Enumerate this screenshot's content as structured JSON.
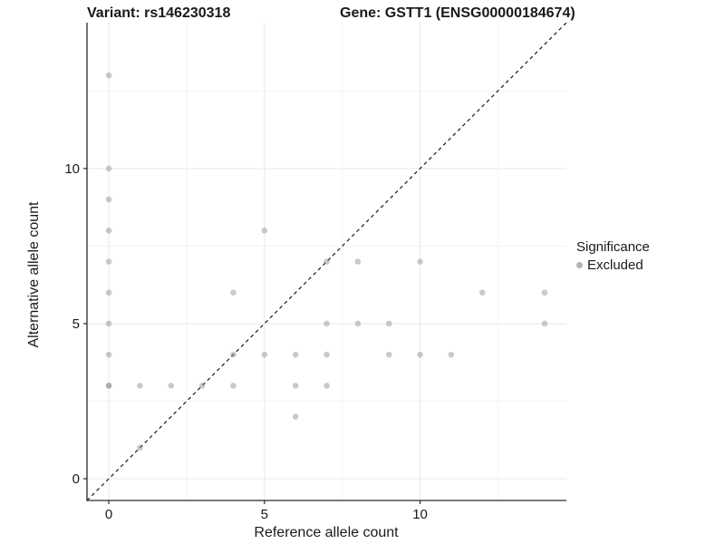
{
  "chart_data": {
    "type": "scatter",
    "title_left": "Variant: rs146230318",
    "title_right": "Gene: GSTT1 (ENSG00000184674)",
    "xlabel": "Reference allele count",
    "ylabel": "Alternative allele count",
    "xlim": [
      -0.7,
      14.7
    ],
    "ylim": [
      -0.7,
      14.7
    ],
    "x_ticks": [
      0,
      5,
      10
    ],
    "y_ticks": [
      0,
      5,
      10
    ],
    "x_minor_ticks": [
      2.5,
      7.5,
      12.5
    ],
    "y_minor_ticks": [
      2.5,
      7.5,
      12.5
    ],
    "grid": true,
    "identity_line": {
      "style": "dashed",
      "from": [
        -0.7,
        -0.7
      ],
      "to": [
        14.7,
        14.7
      ]
    },
    "points": [
      [
        0,
        3
      ],
      [
        0,
        3
      ],
      [
        0,
        4
      ],
      [
        0,
        5
      ],
      [
        0,
        6
      ],
      [
        0,
        7
      ],
      [
        0,
        8
      ],
      [
        0,
        9
      ],
      [
        0,
        10
      ],
      [
        0,
        13
      ],
      [
        1,
        1
      ],
      [
        1,
        3
      ],
      [
        2,
        3
      ],
      [
        3,
        3
      ],
      [
        4,
        3
      ],
      [
        4,
        4
      ],
      [
        4,
        6
      ],
      [
        5,
        4
      ],
      [
        5,
        8
      ],
      [
        6,
        2
      ],
      [
        6,
        3
      ],
      [
        6,
        4
      ],
      [
        7,
        3
      ],
      [
        7,
        4
      ],
      [
        7,
        5
      ],
      [
        7,
        7
      ],
      [
        8,
        5
      ],
      [
        8,
        7
      ],
      [
        9,
        4
      ],
      [
        9,
        5
      ],
      [
        10,
        4
      ],
      [
        10,
        7
      ],
      [
        11,
        4
      ],
      [
        12,
        6
      ],
      [
        14,
        5
      ],
      [
        14,
        6
      ]
    ],
    "legend": {
      "title": "Significance",
      "position": "right",
      "items": [
        {
          "label": "Excluded",
          "color": "#b3b3b3"
        }
      ]
    },
    "colors": {
      "point": "#8a8a8a",
      "point_opacity": 0.45,
      "identity_line": "#1a1a1a",
      "grid_major": "#e8e8e8",
      "grid_minor": "#f3f3f3",
      "axis_line": "#2a2a2a",
      "text": "#1a1a1a"
    }
  }
}
